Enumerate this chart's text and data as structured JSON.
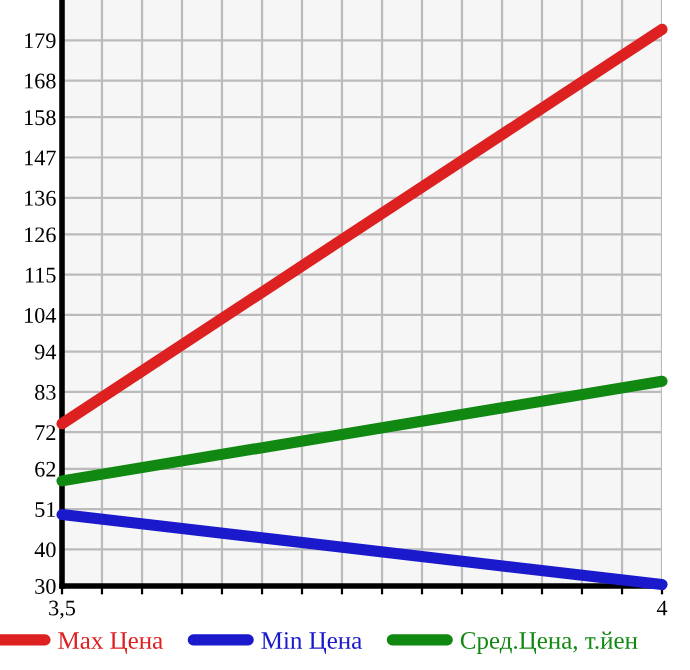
{
  "chart_data": {
    "type": "line",
    "x": [
      3.5,
      4
    ],
    "series": [
      {
        "name": "Max Цена",
        "color": "#dd2020",
        "values": [
          74.3,
          182
        ]
      },
      {
        "name": "Min Цена",
        "color": "#1a1acc",
        "values": [
          49.5,
          30.4
        ]
      },
      {
        "name": "Сред.Цена, т.йен",
        "color": "#118811",
        "values": [
          58.7,
          85.9
        ]
      }
    ],
    "xlim": [
      3.5,
      4
    ],
    "xticks": [
      {
        "value": 3.5,
        "label": "3,5"
      },
      {
        "value": 3.5333,
        "label": null
      },
      {
        "value": 3.5667,
        "label": null
      },
      {
        "value": 3.6,
        "label": null
      },
      {
        "value": 3.6333,
        "label": null
      },
      {
        "value": 3.6667,
        "label": null
      },
      {
        "value": 3.7,
        "label": null
      },
      {
        "value": 3.7333,
        "label": null
      },
      {
        "value": 3.7667,
        "label": null
      },
      {
        "value": 3.8,
        "label": null
      },
      {
        "value": 3.8333,
        "label": null
      },
      {
        "value": 3.8667,
        "label": null
      },
      {
        "value": 3.9,
        "label": null
      },
      {
        "value": 3.9333,
        "label": null
      },
      {
        "value": 3.9667,
        "label": null
      },
      {
        "value": 4,
        "label": "4"
      }
    ],
    "ylim": [
      30,
      190
    ],
    "yticks": [
      30,
      40,
      51,
      62,
      72,
      83,
      94,
      104,
      115,
      126,
      136,
      147,
      158,
      168,
      179
    ],
    "grid": true,
    "legend": "bottom",
    "marker": "none",
    "line_style": "solid"
  }
}
